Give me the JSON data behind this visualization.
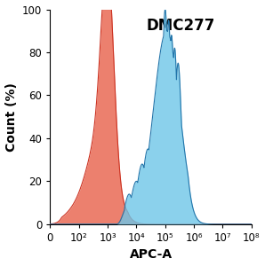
{
  "title": "DMC277",
  "xlabel": "APC-A",
  "ylabel": "Count (%)",
  "ylim": [
    0,
    100
  ],
  "yticks": [
    0,
    20,
    40,
    60,
    80,
    100
  ],
  "xtick_labels": [
    "0",
    "10²",
    "10³",
    "10⁴",
    "10⁵",
    "10⁶",
    "10⁷",
    "10⁸"
  ],
  "red_fill_color": "#E8604A",
  "red_edge_color": "#CC3322",
  "blue_fill_color": "#6EC6E8",
  "blue_edge_color": "#2275AA",
  "title_fontsize": 12,
  "label_fontsize": 10,
  "tick_fontsize": 8.5
}
